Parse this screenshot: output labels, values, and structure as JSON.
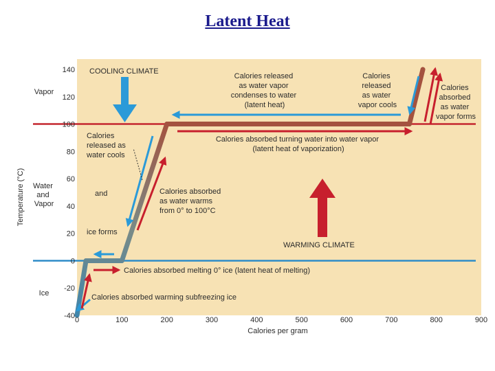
{
  "slide": {
    "title": "Latent Heat"
  },
  "colors": {
    "panel": "#f7e2b4",
    "blue": "#2b9ad8",
    "red": "#c71f2d",
    "red_line": "#c4262e",
    "blue_line": "#2e8cc8"
  },
  "chart_data": {
    "type": "line",
    "title": "Latent Heat",
    "xlabel": "Calories per gram",
    "ylabel": "Temperature (°C)",
    "xlim": [
      0,
      900
    ],
    "ylim": [
      -40,
      140
    ],
    "x_ticks": [
      "0",
      "100",
      "200",
      "300",
      "400",
      "500",
      "600",
      "700",
      "800",
      "900"
    ],
    "y_ticks": [
      "140",
      "120",
      "100",
      "80",
      "60",
      "40",
      "20",
      "0",
      "-20",
      "-40"
    ],
    "series": [
      {
        "name": "Heating curve of water",
        "x": [
          0,
          20,
          100,
          200,
          740,
          770
        ],
        "y": [
          -40,
          0,
          0,
          100,
          100,
          140
        ]
      }
    ],
    "reference_lines": [
      {
        "name": "Boiling point",
        "y": 100
      },
      {
        "name": "Melting point",
        "y": 0
      }
    ],
    "phase_labels": [
      {
        "lines": [
          "Vapor"
        ],
        "y": 120
      },
      {
        "lines": [
          "Water",
          "and",
          "Vapor"
        ],
        "y": 50
      },
      {
        "lines": [
          "Ice"
        ],
        "y": -25
      }
    ],
    "annotations": {
      "cooling_climate": "COOLING CLIMATE",
      "warming_climate": "WARMING CLIMATE",
      "released_condense": [
        "Calories released",
        "as water vapor",
        "condenses to water",
        "(latent heat)"
      ],
      "released_vapor_cools": [
        "Calories",
        "released",
        "as water",
        "vapor cools"
      ],
      "absorbed_vapor_forms": [
        "Calories",
        "absorbed",
        "as water",
        "vapor forms"
      ],
      "absorbed_vaporization": [
        "Calories absorbed turning water into water vapor",
        "(latent heat of vaporization)"
      ],
      "released_water_cools": [
        "Calories",
        "released as",
        "water cools"
      ],
      "and": "and",
      "absorbed_water_warms": [
        "Calories absorbed",
        "as water warms",
        "from 0° to 100°C"
      ],
      "ice_forms": "ice forms",
      "absorbed_melting": "Calories absorbed melting 0° ice (latent heat of melting)",
      "absorbed_subfreezing": "Calories absorbed warming subfreezing ice"
    }
  }
}
